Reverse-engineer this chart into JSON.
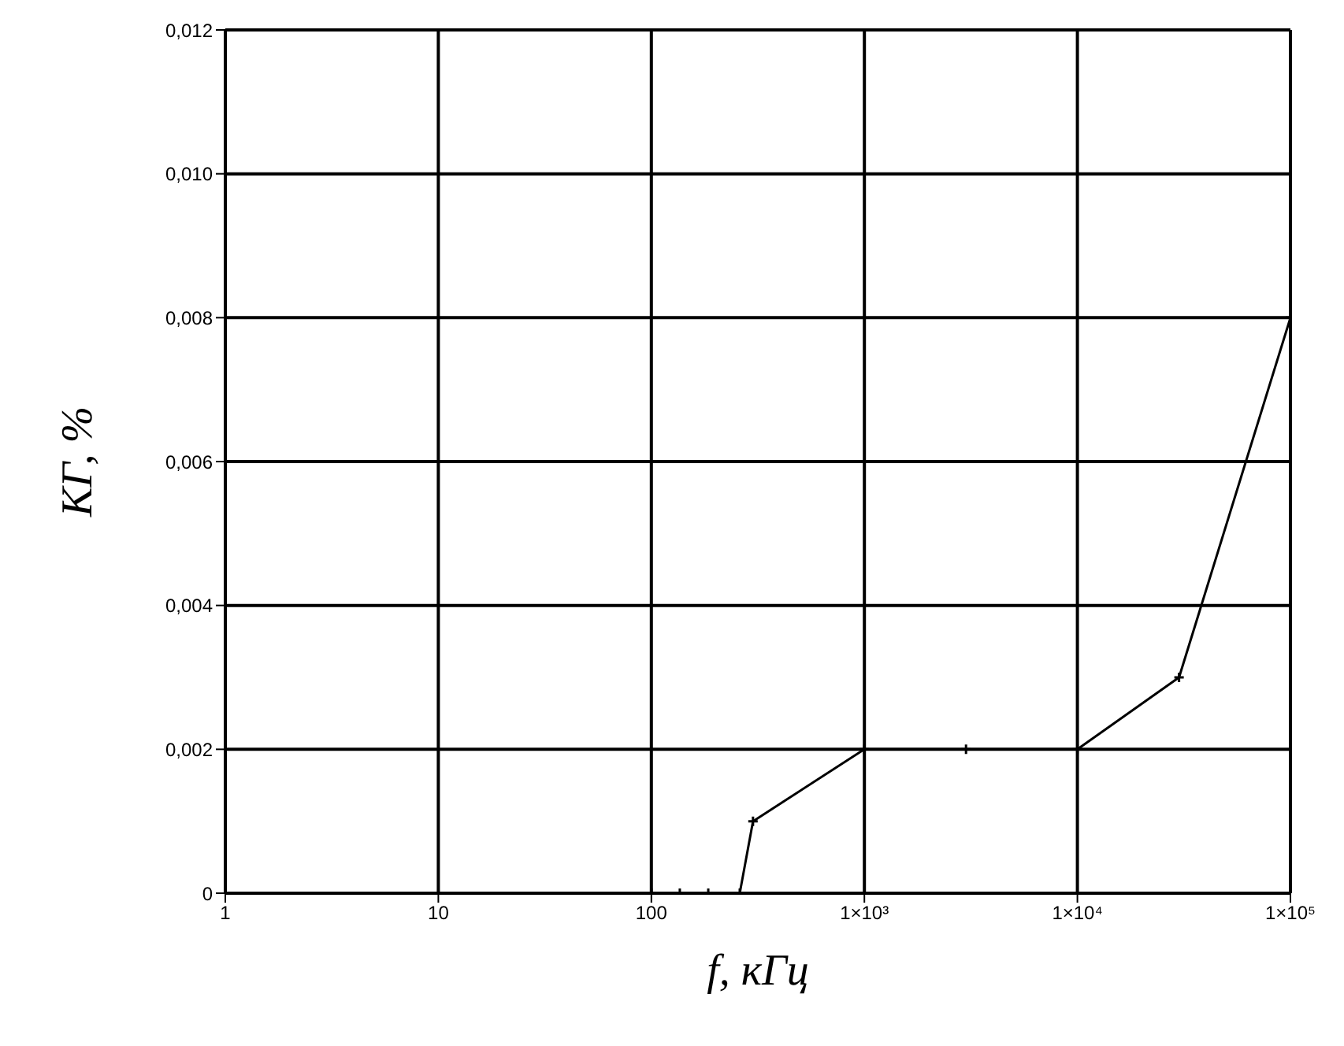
{
  "chart_data": {
    "type": "line",
    "xlabel": "f, кГц",
    "ylabel": "КГ, %",
    "log": "x",
    "grid": true,
    "marker": "cross",
    "line_style": "solid",
    "legend": false,
    "xlim": [
      1,
      100000
    ],
    "xticks": [
      1,
      10,
      100,
      {
        "value": 1000,
        "label": "1×10³"
      },
      {
        "value": 10000,
        "label": "1×10⁴"
      },
      {
        "value": 100000,
        "label": "1×10⁵"
      }
    ],
    "ylim": [
      0,
      0.012
    ],
    "yticks": [
      {
        "value": 0,
        "label": "0"
      },
      {
        "value": 0.002,
        "label": "0,002"
      },
      {
        "value": 0.004,
        "label": "0,004"
      },
      {
        "value": 0.006,
        "label": "0,006"
      },
      {
        "value": 0.008,
        "label": "0,008"
      },
      {
        "value": 0.01,
        "label": "0,010"
      },
      {
        "value": 0.012,
        "label": "0,012"
      }
    ],
    "series": [
      {
        "color": "#000000",
        "x": [
          100,
          136,
          185,
          260,
          300,
          1000,
          3000,
          10000,
          30000,
          100000
        ],
        "values": [
          0,
          0,
          0,
          0,
          0.001,
          0.002,
          0.002,
          0.002,
          0.003,
          0.008
        ]
      }
    ]
  }
}
